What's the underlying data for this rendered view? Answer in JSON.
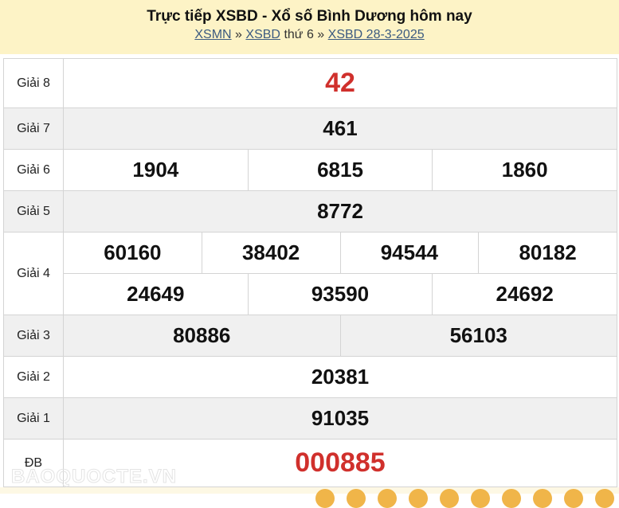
{
  "header": {
    "title": "Trực tiếp XSBD - Xổ số Bình Dương hôm nay",
    "crumb1": "XSMN",
    "sep": "»",
    "crumb2": "XSBD",
    "day": "thứ 6",
    "crumb3": "XSBD 28-3-2025"
  },
  "prizes": {
    "g8": {
      "label": "Giải 8",
      "nums": [
        "42"
      ]
    },
    "g7": {
      "label": "Giải 7",
      "nums": [
        "461"
      ]
    },
    "g6": {
      "label": "Giải 6",
      "nums": [
        "1904",
        "6815",
        "1860"
      ]
    },
    "g5": {
      "label": "Giải 5",
      "nums": [
        "8772"
      ]
    },
    "g4": {
      "label": "Giải 4",
      "nums": [
        "60160",
        "38402",
        "94544",
        "80182",
        "24649",
        "93590",
        "24692"
      ]
    },
    "g3": {
      "label": "Giải 3",
      "nums": [
        "80886",
        "56103"
      ]
    },
    "g2": {
      "label": "Giải 2",
      "nums": [
        "20381"
      ]
    },
    "g1": {
      "label": "Giải 1",
      "nums": [
        "91035"
      ]
    },
    "db": {
      "label": "ĐB",
      "nums": [
        "000885"
      ]
    }
  },
  "watermark": "BAOQUOCTE.VN",
  "colors": {
    "accent_red": "#d0302c",
    "header_bg": "#fdf3c6",
    "link": "#3b5a80"
  }
}
